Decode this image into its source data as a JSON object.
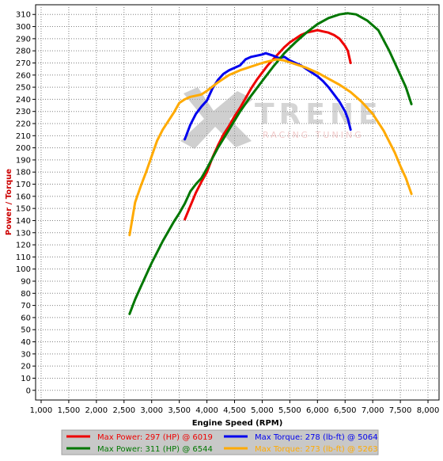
{
  "colors": {
    "plot_bg": "#ffffff",
    "grid": "#808080",
    "axis_title_y": "#cc0000",
    "axis_title_x": "#000000",
    "legend_bg": "#c8c8c8",
    "logo_gray": "#b4b4b4",
    "logo_pink": "#e8a0a0"
  },
  "logo": {
    "letters": "TRENE",
    "tagline": "RACING TUNING"
  },
  "chart_data": {
    "type": "line",
    "xlabel": "Engine Speed (RPM)",
    "ylabel": "Power / Torque",
    "xlim": [
      900,
      8200
    ],
    "ylim": [
      -8,
      318
    ],
    "x_ticks": [
      "1,000",
      "1,500",
      "2,000",
      "2,500",
      "3,000",
      "3,500",
      "4,000",
      "4,500",
      "5,000",
      "5,500",
      "6,000",
      "6,500",
      "7,000",
      "7,500",
      "8,000"
    ],
    "y_ticks": [
      0,
      10,
      20,
      30,
      40,
      50,
      60,
      70,
      80,
      90,
      100,
      110,
      120,
      130,
      140,
      150,
      160,
      170,
      180,
      190,
      200,
      210,
      220,
      230,
      240,
      250,
      260,
      270,
      280,
      290,
      300,
      310
    ],
    "grid": true,
    "legend_position": "bottom",
    "series": [
      {
        "name": "Max Power: 297 (HP) @ 6019",
        "color": "#ee0000",
        "x": [
          3600,
          3700,
          3800,
          3900,
          4000,
          4100,
          4200,
          4300,
          4400,
          4500,
          4600,
          4700,
          4800,
          4900,
          5000,
          5100,
          5200,
          5300,
          5400,
          5500,
          5600,
          5700,
          5800,
          5900,
          6000,
          6100,
          6200,
          6300,
          6400,
          6500,
          6550,
          6600
        ],
        "y": [
          141,
          152,
          163,
          172,
          180,
          192,
          202,
          211,
          218,
          226,
          233,
          241,
          249,
          256,
          262,
          268,
          273,
          278,
          283,
          287,
          290,
          293,
          295,
          296,
          297,
          296,
          295,
          293,
          290,
          284,
          280,
          270
        ]
      },
      {
        "name": "Max Torque: 278 (lb-ft) @ 5064",
        "color": "#0000ee",
        "x": [
          3600,
          3700,
          3800,
          3900,
          4000,
          4100,
          4200,
          4300,
          4400,
          4500,
          4600,
          4700,
          4800,
          4900,
          5000,
          5064,
          5200,
          5300,
          5400,
          5500,
          5600,
          5700,
          5800,
          5900,
          6000,
          6100,
          6200,
          6300,
          6400,
          6500,
          6550,
          6600
        ],
        "y": [
          207,
          219,
          228,
          234,
          239,
          249,
          256,
          261,
          264,
          266,
          268,
          273,
          275,
          276,
          277,
          278,
          276,
          274,
          275,
          272,
          270,
          268,
          265,
          262,
          259,
          255,
          250,
          244,
          238,
          230,
          224,
          215
        ]
      },
      {
        "name": "Max Power: 311 (HP) @ 6544",
        "color": "#007700",
        "x": [
          2600,
          2700,
          2800,
          2900,
          3000,
          3100,
          3200,
          3300,
          3400,
          3500,
          3600,
          3700,
          3800,
          3900,
          4000,
          4200,
          4400,
          4600,
          4800,
          5000,
          5200,
          5400,
          5600,
          5800,
          6000,
          6200,
          6400,
          6544,
          6700,
          6900,
          7100,
          7300,
          7500,
          7600,
          7700
        ],
        "y": [
          63,
          75,
          85,
          95,
          105,
          114,
          123,
          131,
          139,
          146,
          154,
          164,
          170,
          175,
          183,
          200,
          215,
          230,
          243,
          255,
          267,
          278,
          287,
          295,
          302,
          307,
          310,
          311,
          310,
          305,
          297,
          280,
          260,
          250,
          236
        ]
      },
      {
        "name": "Max Torque: 273 (lb-ft) @ 5263",
        "color": "#ffaa00",
        "x": [
          2600,
          2700,
          2800,
          2900,
          3000,
          3100,
          3200,
          3300,
          3400,
          3500,
          3600,
          3700,
          3800,
          3900,
          4000,
          4200,
          4400,
          4600,
          4800,
          5000,
          5263,
          5400,
          5600,
          5800,
          6000,
          6200,
          6400,
          6600,
          6800,
          7000,
          7200,
          7400,
          7500,
          7600,
          7700
        ],
        "y": [
          128,
          155,
          168,
          180,
          193,
          206,
          215,
          222,
          229,
          237,
          240,
          242,
          243,
          244,
          247,
          254,
          260,
          264,
          267,
          270,
          273,
          272,
          269,
          266,
          262,
          257,
          252,
          246,
          238,
          228,
          214,
          196,
          185,
          175,
          162
        ]
      }
    ]
  }
}
